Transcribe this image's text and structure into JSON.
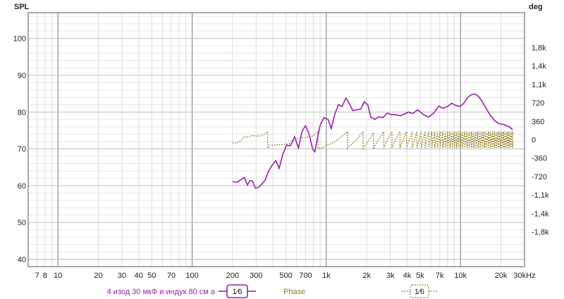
{
  "chart_data": {
    "type": "line",
    "ylabel_left": "SPL",
    "ylabel_right": "deg",
    "x_scale": "log",
    "xlim": [
      6,
      30000
    ],
    "ylim_left": [
      38,
      107
    ],
    "ylim_right": [
      -2480,
      2480
    ],
    "grid": true,
    "legend_placement": "bottom",
    "x_tick_labels": [
      {
        "x": 7,
        "label": "7"
      },
      {
        "x": 8,
        "label": "8"
      },
      {
        "x": 10,
        "label": "10"
      },
      {
        "x": 20,
        "label": "20"
      },
      {
        "x": 30,
        "label": "30"
      },
      {
        "x": 40,
        "label": "40"
      },
      {
        "x": 50,
        "label": "50"
      },
      {
        "x": 70,
        "label": "70"
      },
      {
        "x": 100,
        "label": "100"
      },
      {
        "x": 200,
        "label": "200"
      },
      {
        "x": 300,
        "label": "300"
      },
      {
        "x": 500,
        "label": "500"
      },
      {
        "x": 700,
        "label": "700"
      },
      {
        "x": 1000,
        "label": "1k"
      },
      {
        "x": 2000,
        "label": "2k"
      },
      {
        "x": 3000,
        "label": "3k"
      },
      {
        "x": 4000,
        "label": "4k"
      },
      {
        "x": 5000,
        "label": "5k"
      },
      {
        "x": 7000,
        "label": "7k"
      },
      {
        "x": 10000,
        "label": "10k"
      },
      {
        "x": 20000,
        "label": "20k"
      },
      {
        "x": 30000,
        "label": "30kHz"
      }
    ],
    "y_left_ticks": [
      {
        "v": 40,
        "label": "40"
      },
      {
        "v": 50,
        "label": "50"
      },
      {
        "v": 60,
        "label": "60"
      },
      {
        "v": 70,
        "label": "70"
      },
      {
        "v": 80,
        "label": "80"
      },
      {
        "v": 90,
        "label": "90"
      },
      {
        "v": 100,
        "label": "100"
      }
    ],
    "y_right_ticks": [
      {
        "v": 1800,
        "label": "1,8k"
      },
      {
        "v": 1440,
        "label": "1,4k"
      },
      {
        "v": 1080,
        "label": "1,1k"
      },
      {
        "v": 720,
        "label": "720"
      },
      {
        "v": 360,
        "label": "360"
      },
      {
        "v": 0,
        "label": "0"
      },
      {
        "v": -360,
        "label": "-360"
      },
      {
        "v": -720,
        "label": "-720"
      },
      {
        "v": -1080,
        "label": "-1,1k"
      },
      {
        "v": -1440,
        "label": "-1,4k"
      },
      {
        "v": -1800,
        "label": "-1,8k"
      }
    ],
    "series": [
      {
        "name": "4 изод 30 мкФ и индук 80 см а",
        "axis": "left",
        "color": "#9b1fb0",
        "smoothing": "1/6",
        "points": [
          [
            200,
            61.1
          ],
          [
            215,
            60.9
          ],
          [
            232,
            61.7
          ],
          [
            245,
            62.2
          ],
          [
            258,
            60.2
          ],
          [
            270,
            61.4
          ],
          [
            282,
            61.3
          ],
          [
            296,
            59.3
          ],
          [
            312,
            59.5
          ],
          [
            330,
            60.4
          ],
          [
            350,
            61.5
          ],
          [
            370,
            63.8
          ],
          [
            395,
            65.6
          ],
          [
            420,
            66.8
          ],
          [
            445,
            64.7
          ],
          [
            475,
            68.6
          ],
          [
            505,
            71.0
          ],
          [
            540,
            70.8
          ],
          [
            580,
            73.3
          ],
          [
            620,
            70.2
          ],
          [
            660,
            74.8
          ],
          [
            700,
            76.3
          ],
          [
            745,
            74.0
          ],
          [
            790,
            70.0
          ],
          [
            820,
            69.2
          ],
          [
            850,
            72.0
          ],
          [
            900,
            76.5
          ],
          [
            960,
            78.5
          ],
          [
            1030,
            78.0
          ],
          [
            1090,
            75.5
          ],
          [
            1150,
            79.1
          ],
          [
            1230,
            82.0
          ],
          [
            1310,
            81.5
          ],
          [
            1400,
            83.8
          ],
          [
            1480,
            82.4
          ],
          [
            1570,
            80.4
          ],
          [
            1680,
            80.6
          ],
          [
            1800,
            80.8
          ],
          [
            1920,
            82.8
          ],
          [
            2040,
            81.9
          ],
          [
            2150,
            78.6
          ],
          [
            2300,
            78.0
          ],
          [
            2450,
            78.7
          ],
          [
            2650,
            78.5
          ],
          [
            2850,
            79.7
          ],
          [
            3050,
            79.3
          ],
          [
            3300,
            79.3
          ],
          [
            3550,
            79.0
          ],
          [
            3850,
            79.5
          ],
          [
            4100,
            80.0
          ],
          [
            4400,
            79.6
          ],
          [
            4800,
            80.6
          ],
          [
            5300,
            79.3
          ],
          [
            5800,
            78.6
          ],
          [
            6300,
            79.7
          ],
          [
            6900,
            81.6
          ],
          [
            7400,
            81.0
          ],
          [
            8000,
            81.5
          ],
          [
            8600,
            82.4
          ],
          [
            9200,
            81.8
          ],
          [
            9900,
            81.5
          ],
          [
            10600,
            82.4
          ],
          [
            11200,
            83.8
          ],
          [
            12000,
            84.7
          ],
          [
            12800,
            84.9
          ],
          [
            13600,
            84.3
          ],
          [
            14500,
            82.9
          ],
          [
            15500,
            81.0
          ],
          [
            16600,
            79.2
          ],
          [
            17800,
            77.8
          ],
          [
            19200,
            76.9
          ],
          [
            21000,
            76.6
          ],
          [
            23000,
            76.0
          ],
          [
            24500,
            75.2
          ]
        ]
      },
      {
        "name": "Phase",
        "axis": "right",
        "color": "#8f7d1a",
        "smoothing": "1/6",
        "points": [
          [
            200,
            -60
          ],
          [
            215,
            -70
          ],
          [
            230,
            -20
          ],
          [
            245,
            60
          ],
          [
            260,
            50
          ],
          [
            280,
            80
          ],
          [
            300,
            70
          ],
          [
            320,
            70
          ],
          [
            340,
            95
          ],
          [
            355,
            130
          ],
          [
            365,
            155
          ],
          [
            366,
            -170
          ],
          [
            380,
            -110
          ],
          [
            405,
            -110
          ],
          [
            430,
            -100
          ],
          [
            460,
            -100
          ],
          [
            500,
            -90
          ],
          [
            540,
            -70
          ],
          [
            580,
            -20
          ],
          [
            610,
            20
          ],
          [
            650,
            40
          ],
          [
            690,
            40
          ],
          [
            740,
            60
          ],
          [
            780,
            60
          ],
          [
            810,
            90
          ],
          [
            840,
            120
          ],
          [
            865,
            150
          ],
          [
            866,
            -170
          ],
          [
            930,
            -165
          ],
          [
            1000,
            -110
          ],
          [
            1100,
            -70
          ],
          [
            1200,
            -10
          ],
          [
            1310,
            70
          ],
          [
            1380,
            115
          ],
          [
            1440,
            155
          ],
          [
            1441,
            -160
          ],
          [
            1560,
            -80
          ],
          [
            1680,
            0
          ],
          [
            1800,
            90
          ],
          [
            1880,
            160
          ],
          [
            1881,
            -165
          ],
          [
            2000,
            -70
          ],
          [
            2140,
            40
          ],
          [
            2250,
            140
          ],
          [
            2251,
            -160
          ],
          [
            2400,
            -40
          ],
          [
            2550,
            70
          ],
          [
            2680,
            155
          ],
          [
            2681,
            -160
          ],
          [
            2830,
            -30
          ],
          [
            2980,
            80
          ],
          [
            3080,
            160
          ],
          [
            3081,
            -160
          ],
          [
            3250,
            -30
          ],
          [
            3420,
            90
          ],
          [
            3540,
            160
          ],
          [
            3541,
            -160
          ],
          [
            3700,
            -30
          ],
          [
            3870,
            100
          ],
          [
            3960,
            160
          ],
          [
            3961,
            -160
          ],
          [
            4130,
            -20
          ],
          [
            4290,
            110
          ],
          [
            4360,
            160
          ],
          [
            4361,
            -160
          ],
          [
            4520,
            -20
          ],
          [
            4680,
            120
          ],
          [
            4740,
            160
          ],
          [
            4741,
            -160
          ],
          [
            4900,
            -20
          ],
          [
            5040,
            120
          ],
          [
            5100,
            160
          ],
          [
            5101,
            -160
          ],
          [
            5250,
            -10
          ],
          [
            5400,
            140
          ],
          [
            5450,
            160
          ],
          [
            5451,
            -160
          ],
          [
            5600,
            -10
          ],
          [
            5750,
            140
          ],
          [
            5800,
            160
          ],
          [
            5801,
            -160
          ],
          [
            5960,
            0
          ],
          [
            6110,
            160
          ],
          [
            6111,
            -160
          ],
          [
            6270,
            0
          ],
          [
            6420,
            160
          ],
          [
            6421,
            -160
          ],
          [
            6580,
            0
          ],
          [
            6730,
            160
          ],
          [
            6731,
            -160
          ],
          [
            6900,
            0
          ],
          [
            7050,
            160
          ],
          [
            7051,
            -160
          ],
          [
            7220,
            0
          ],
          [
            7380,
            160
          ],
          [
            7381,
            -160
          ],
          [
            7550,
            0
          ],
          [
            7700,
            160
          ],
          [
            7701,
            -160
          ],
          [
            7860,
            0
          ],
          [
            8020,
            160
          ],
          [
            8021,
            -160
          ],
          [
            8180,
            0
          ],
          [
            8340,
            160
          ],
          [
            8341,
            -160
          ],
          [
            8500,
            0
          ],
          [
            8660,
            160
          ],
          [
            8661,
            -160
          ],
          [
            8820,
            0
          ],
          [
            8980,
            160
          ],
          [
            8981,
            -160
          ],
          [
            9150,
            0
          ],
          [
            9310,
            160
          ],
          [
            9311,
            -160
          ],
          [
            9480,
            0
          ],
          [
            9640,
            160
          ],
          [
            9641,
            -160
          ],
          [
            9800,
            0
          ],
          [
            9960,
            160
          ],
          [
            9961,
            -160
          ],
          [
            10150,
            0
          ],
          [
            10350,
            160
          ],
          [
            10351,
            -160
          ],
          [
            10550,
            0
          ],
          [
            10760,
            160
          ],
          [
            10761,
            -160
          ],
          [
            10970,
            0
          ],
          [
            11180,
            160
          ],
          [
            11181,
            -160
          ],
          [
            11400,
            0
          ],
          [
            11620,
            160
          ],
          [
            11621,
            -160
          ],
          [
            11840,
            0
          ],
          [
            12060,
            160
          ],
          [
            12061,
            -160
          ],
          [
            12290,
            0
          ],
          [
            12520,
            160
          ],
          [
            12521,
            -160
          ],
          [
            12760,
            0
          ],
          [
            13000,
            160
          ],
          [
            13001,
            -160
          ],
          [
            13240,
            0
          ],
          [
            13480,
            160
          ],
          [
            13481,
            -160
          ],
          [
            13730,
            0
          ],
          [
            13980,
            160
          ],
          [
            13981,
            -160
          ],
          [
            14240,
            0
          ],
          [
            14500,
            160
          ],
          [
            14501,
            -160
          ],
          [
            14770,
            0
          ],
          [
            15040,
            160
          ],
          [
            15041,
            -160
          ],
          [
            15310,
            0
          ],
          [
            15580,
            160
          ],
          [
            15581,
            -160
          ],
          [
            15860,
            0
          ],
          [
            16140,
            160
          ],
          [
            16141,
            -160
          ],
          [
            16430,
            0
          ],
          [
            16720,
            160
          ],
          [
            16721,
            -160
          ],
          [
            17010,
            0
          ],
          [
            17300,
            160
          ],
          [
            17301,
            -160
          ],
          [
            17600,
            0
          ],
          [
            17900,
            160
          ],
          [
            17901,
            -160
          ],
          [
            18200,
            0
          ],
          [
            18500,
            160
          ],
          [
            18501,
            -160
          ],
          [
            18800,
            0
          ],
          [
            19100,
            160
          ],
          [
            19101,
            -160
          ],
          [
            19420,
            0
          ],
          [
            19740,
            160
          ],
          [
            19741,
            -160
          ],
          [
            20060,
            0
          ],
          [
            20380,
            160
          ],
          [
            20381,
            -160
          ],
          [
            20700,
            0
          ],
          [
            21020,
            160
          ],
          [
            21021,
            -160
          ],
          [
            21350,
            0
          ],
          [
            21680,
            160
          ],
          [
            21681,
            -160
          ],
          [
            22010,
            0
          ],
          [
            22340,
            160
          ],
          [
            22341,
            -160
          ],
          [
            22680,
            0
          ],
          [
            23020,
            160
          ],
          [
            23021,
            -160
          ],
          [
            23360,
            0
          ],
          [
            23700,
            160
          ],
          [
            23701,
            -160
          ],
          [
            24040,
            0
          ],
          [
            24380,
            160
          ],
          [
            24381,
            -160
          ],
          [
            24500,
            -50
          ]
        ]
      }
    ]
  },
  "legend": {
    "items": [
      {
        "label": "4 изод 30 мкФ и индук 80 см а",
        "smoothing": "1⁄6",
        "color": "#9b1fb0",
        "line_style": "solid"
      },
      {
        "label": "Phase",
        "color": "#8f7d1a",
        "line_style": "none"
      },
      {
        "label": "",
        "smoothing": "1⁄6",
        "color": "#8f7d1a",
        "line_style": "dotted"
      }
    ]
  }
}
